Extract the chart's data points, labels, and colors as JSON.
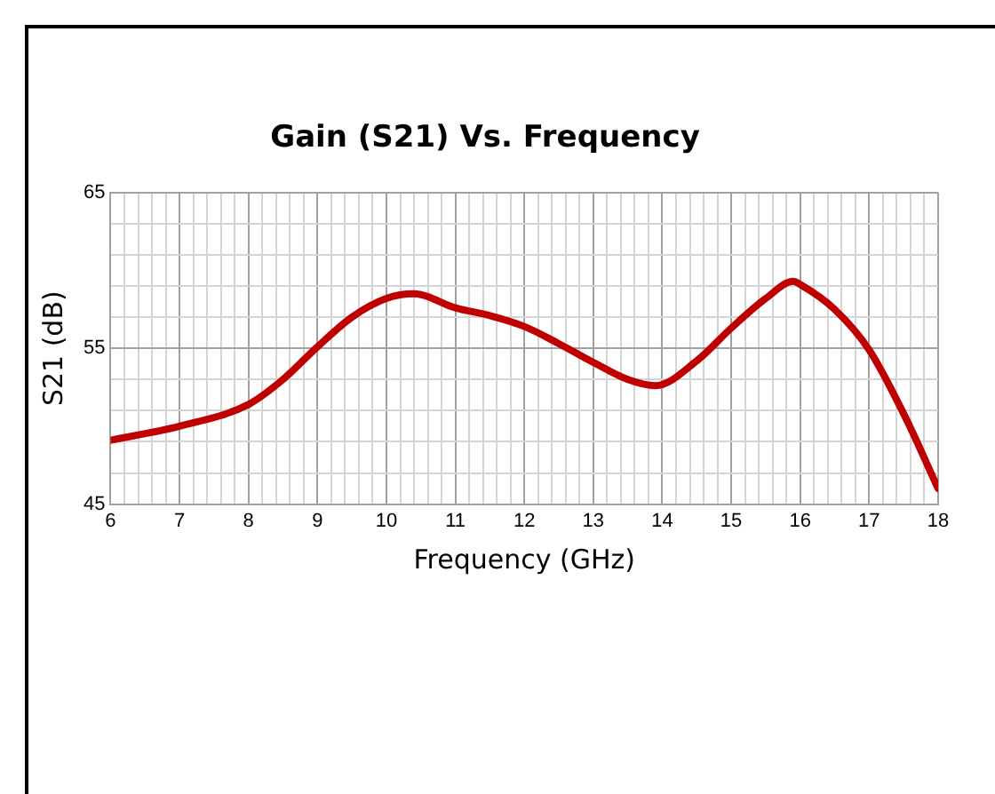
{
  "chart_data": {
    "type": "line",
    "title": "Gain (S21) Vs. Frequency",
    "xlabel": "Frequency (GHz)",
    "ylabel": "S21 (dB)",
    "x": [
      6,
      7,
      8,
      8.5,
      9,
      9.5,
      10,
      10.4,
      11,
      11.5,
      12,
      12.5,
      13,
      13.5,
      13.9,
      14.5,
      15,
      15.5,
      15.9,
      16,
      16.5,
      17,
      17.5,
      18
    ],
    "series": [
      {
        "color": "#c00000",
        "values": [
          49.1,
          50.0,
          51.4,
          53.0,
          55.1,
          57.0,
          58.2,
          58.5,
          57.6,
          57.1,
          56.4,
          55.3,
          54.1,
          53.0,
          52.6,
          54.2,
          56.3,
          58.2,
          59.3,
          59.1,
          57.5,
          54.9,
          50.8,
          46.0
        ]
      }
    ],
    "xlim": [
      6,
      18
    ],
    "ylim": [
      45,
      65
    ],
    "xticks": [
      6,
      {
        "value": 6.2,
        "label": null
      },
      {
        "value": 6.4,
        "label": null
      },
      {
        "value": 6.6,
        "label": null
      },
      {
        "value": 6.8,
        "label": null
      },
      7,
      {
        "value": 7.2,
        "label": null
      },
      {
        "value": 7.4,
        "label": null
      },
      {
        "value": 7.6,
        "label": null
      },
      {
        "value": 7.8,
        "label": null
      },
      8,
      {
        "value": 8.2,
        "label": null
      },
      {
        "value": 8.4,
        "label": null
      },
      {
        "value": 8.6,
        "label": null
      },
      {
        "value": 8.8,
        "label": null
      },
      9,
      {
        "value": 9.2,
        "label": null
      },
      {
        "value": 9.4,
        "label": null
      },
      {
        "value": 9.6,
        "label": null
      },
      {
        "value": 9.8,
        "label": null
      },
      10,
      {
        "value": 10.2,
        "label": null
      },
      {
        "value": 10.4,
        "label": null
      },
      {
        "value": 10.6,
        "label": null
      },
      {
        "value": 10.8,
        "label": null
      },
      11,
      {
        "value": 11.2,
        "label": null
      },
      {
        "value": 11.4,
        "label": null
      },
      {
        "value": 11.6,
        "label": null
      },
      {
        "value": 11.8,
        "label": null
      },
      12,
      {
        "value": 12.2,
        "label": null
      },
      {
        "value": 12.4,
        "label": null
      },
      {
        "value": 12.6,
        "label": null
      },
      {
        "value": 12.8,
        "label": null
      },
      13,
      {
        "value": 13.2,
        "label": null
      },
      {
        "value": 13.4,
        "label": null
      },
      {
        "value": 13.6,
        "label": null
      },
      {
        "value": 13.8,
        "label": null
      },
      14,
      {
        "value": 14.2,
        "label": null
      },
      {
        "value": 14.4,
        "label": null
      },
      {
        "value": 14.6,
        "label": null
      },
      {
        "value": 14.8,
        "label": null
      },
      15,
      {
        "value": 15.2,
        "label": null
      },
      {
        "value": 15.4,
        "label": null
      },
      {
        "value": 15.6,
        "label": null
      },
      {
        "value": 15.8,
        "label": null
      },
      16,
      {
        "value": 16.2,
        "label": null
      },
      {
        "value": 16.4,
        "label": null
      },
      {
        "value": 16.6,
        "label": null
      },
      {
        "value": 16.8,
        "label": null
      },
      17,
      {
        "value": 17.2,
        "label": null
      },
      {
        "value": 17.4,
        "label": null
      },
      {
        "value": 17.6,
        "label": null
      },
      {
        "value": 17.8,
        "label": null
      },
      18
    ],
    "yticks": [
      45,
      {
        "value": 47,
        "label": null
      },
      {
        "value": 49,
        "label": null
      },
      {
        "value": 51,
        "label": null
      },
      {
        "value": 53,
        "label": null
      },
      55,
      {
        "value": 57,
        "label": null
      },
      {
        "value": 59,
        "label": null
      },
      {
        "value": 61,
        "label": null
      },
      {
        "value": 63,
        "label": null
      },
      65
    ],
    "grid": true,
    "legend": false,
    "marker": "none",
    "line_style": "solid"
  }
}
